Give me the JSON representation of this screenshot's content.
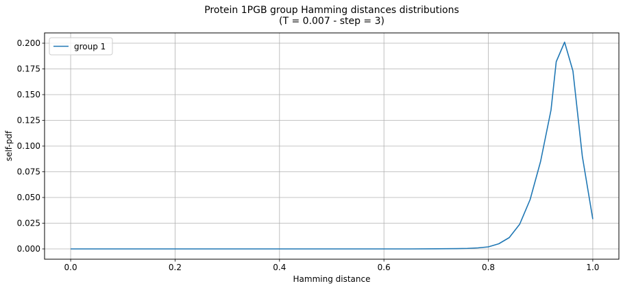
{
  "chart_data": {
    "type": "line",
    "title": "Protein 1PGB group Hamming distances distributions",
    "subtitle": "(T = 0.007 - step = 3)",
    "xlabel": "Hamming distance",
    "ylabel": "self-pdf",
    "xlim": [
      -0.05,
      1.05
    ],
    "ylim": [
      -0.01,
      0.21
    ],
    "xticks": [
      "0.0",
      "0.2",
      "0.4",
      "0.6",
      "0.8",
      "1.0"
    ],
    "yticks": [
      "0.000",
      "0.025",
      "0.050",
      "0.075",
      "0.100",
      "0.125",
      "0.150",
      "0.175",
      "0.200"
    ],
    "grid": true,
    "legend_position": "top-left",
    "series": [
      {
        "name": "group 1",
        "color": "#1f77b4",
        "x": [
          0.0,
          0.1,
          0.2,
          0.3,
          0.4,
          0.5,
          0.6,
          0.65,
          0.7,
          0.72,
          0.74,
          0.76,
          0.78,
          0.8,
          0.82,
          0.84,
          0.86,
          0.88,
          0.9,
          0.92,
          0.93,
          0.946,
          0.962,
          0.98,
          1.0
        ],
        "y": [
          0.0,
          0.0,
          0.0,
          0.0,
          0.0,
          0.0,
          0.0,
          0.0,
          0.0001,
          0.0002,
          0.0003,
          0.0005,
          0.001,
          0.002,
          0.005,
          0.011,
          0.024,
          0.048,
          0.085,
          0.135,
          0.182,
          0.201,
          0.173,
          0.09,
          0.029
        ]
      }
    ]
  }
}
